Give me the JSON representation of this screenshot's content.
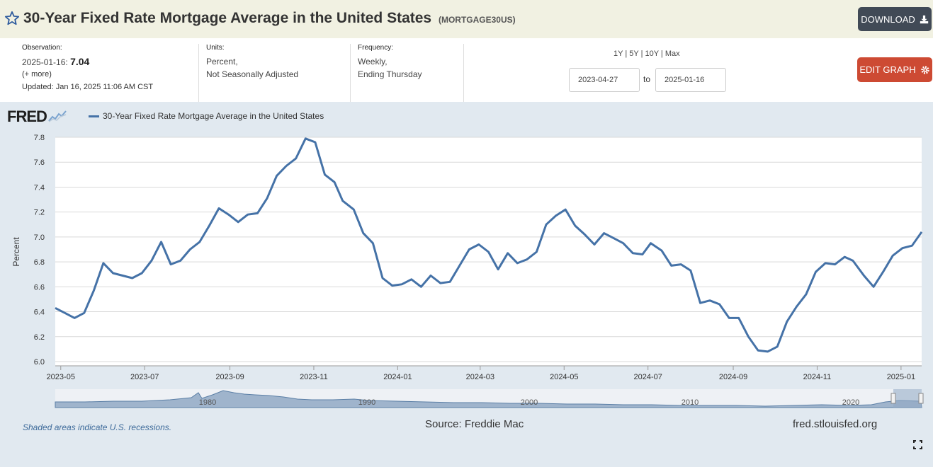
{
  "header": {
    "title": "30-Year Fixed Rate Mortgage Average in the United States",
    "series_id": "(MORTGAGE30US)",
    "download_label": "DOWNLOAD"
  },
  "meta": {
    "observation_label": "Observation:",
    "observation_date": "2025-01-16:",
    "observation_value": "7.04",
    "more_link": "(+ more)",
    "updated": "Updated: Jan 16, 2025 11:06 AM CST",
    "units_label": "Units:",
    "units_line1": "Percent,",
    "units_line2": "Not Seasonally Adjusted",
    "frequency_label": "Frequency:",
    "frequency_line1": "Weekly,",
    "frequency_line2": "Ending Thursday"
  },
  "controls": {
    "range_1y": "1Y",
    "range_5y": "5Y",
    "range_10y": "10Y",
    "range_max": "Max",
    "start_date": "2023-04-27",
    "to_label": "to",
    "end_date": "2025-01-16",
    "edit_label": "EDIT GRAPH"
  },
  "brand": {
    "logo": "FRED"
  },
  "footer": {
    "recession_note": "Shaded areas indicate U.S. recessions.",
    "source": "Source: Freddie Mac",
    "site": "fred.stlouisfed.org"
  },
  "navigator_labels": [
    "1980",
    "1990",
    "2000",
    "2010",
    "2020"
  ],
  "chart_data": {
    "type": "line",
    "title": "30-Year Fixed Rate Mortgage Average in the United States",
    "legend": "30-Year Fixed Rate Mortgage Average in the United States",
    "xlabel": "",
    "ylabel": "Percent",
    "ylim": [
      6.0,
      7.8
    ],
    "yticks": [
      "6.0",
      "6.2",
      "6.4",
      "6.6",
      "6.8",
      "7.0",
      "7.2",
      "7.4",
      "7.6",
      "7.8"
    ],
    "xticks": [
      "2023-05",
      "2023-07",
      "2023-09",
      "2023-11",
      "2024-01",
      "2024-03",
      "2024-05",
      "2024-07",
      "2024-09",
      "2024-11",
      "2025-01"
    ],
    "series": [
      {
        "name": "MORTGAGE30US",
        "color": "#4572a7",
        "x": [
          "2023-04-27",
          "2023-05-04",
          "2023-05-11",
          "2023-05-18",
          "2023-05-25",
          "2023-06-01",
          "2023-06-08",
          "2023-06-15",
          "2023-06-22",
          "2023-06-29",
          "2023-07-06",
          "2023-07-13",
          "2023-07-20",
          "2023-07-27",
          "2023-08-03",
          "2023-08-10",
          "2023-08-17",
          "2023-08-24",
          "2023-08-31",
          "2023-09-07",
          "2023-09-14",
          "2023-09-21",
          "2023-09-28",
          "2023-10-05",
          "2023-10-12",
          "2023-10-19",
          "2023-10-26",
          "2023-11-02",
          "2023-11-09",
          "2023-11-16",
          "2023-11-22",
          "2023-11-30",
          "2023-12-07",
          "2023-12-14",
          "2023-12-21",
          "2023-12-28",
          "2024-01-04",
          "2024-01-11",
          "2024-01-18",
          "2024-01-25",
          "2024-02-01",
          "2024-02-08",
          "2024-02-15",
          "2024-02-22",
          "2024-02-29",
          "2024-03-07",
          "2024-03-14",
          "2024-03-21",
          "2024-03-28",
          "2024-04-04",
          "2024-04-11",
          "2024-04-18",
          "2024-04-25",
          "2024-05-02",
          "2024-05-09",
          "2024-05-16",
          "2024-05-23",
          "2024-05-30",
          "2024-06-06",
          "2024-06-13",
          "2024-06-20",
          "2024-06-27",
          "2024-07-03",
          "2024-07-11",
          "2024-07-18",
          "2024-07-25",
          "2024-08-01",
          "2024-08-08",
          "2024-08-15",
          "2024-08-22",
          "2024-08-29",
          "2024-09-05",
          "2024-09-12",
          "2024-09-19",
          "2024-09-26",
          "2024-10-03",
          "2024-10-10",
          "2024-10-17",
          "2024-10-24",
          "2024-10-31",
          "2024-11-07",
          "2024-11-14",
          "2024-11-21",
          "2024-11-27",
          "2024-12-05",
          "2024-12-12",
          "2024-12-19",
          "2024-12-26",
          "2025-01-02",
          "2025-01-09",
          "2025-01-16"
        ],
        "values": [
          6.43,
          6.39,
          6.35,
          6.39,
          6.57,
          6.79,
          6.71,
          6.69,
          6.67,
          6.71,
          6.81,
          6.96,
          6.78,
          6.81,
          6.9,
          6.96,
          7.09,
          7.23,
          7.18,
          7.12,
          7.18,
          7.19,
          7.31,
          7.49,
          7.57,
          7.63,
          7.79,
          7.76,
          7.5,
          7.44,
          7.29,
          7.22,
          7.03,
          6.95,
          6.67,
          6.61,
          6.62,
          6.66,
          6.6,
          6.69,
          6.63,
          6.64,
          6.77,
          6.9,
          6.94,
          6.88,
          6.74,
          6.87,
          6.79,
          6.82,
          6.88,
          7.1,
          7.17,
          7.22,
          7.09,
          7.02,
          6.94,
          7.03,
          6.99,
          6.95,
          6.87,
          6.86,
          6.95,
          6.89,
          6.77,
          6.78,
          6.73,
          6.47,
          6.49,
          6.46,
          6.35,
          6.35,
          6.2,
          6.09,
          6.08,
          6.12,
          6.32,
          6.44,
          6.54,
          6.72,
          6.79,
          6.78,
          6.84,
          6.81,
          6.69,
          6.6,
          6.72,
          6.85,
          6.91,
          6.93,
          7.04
        ]
      }
    ]
  }
}
